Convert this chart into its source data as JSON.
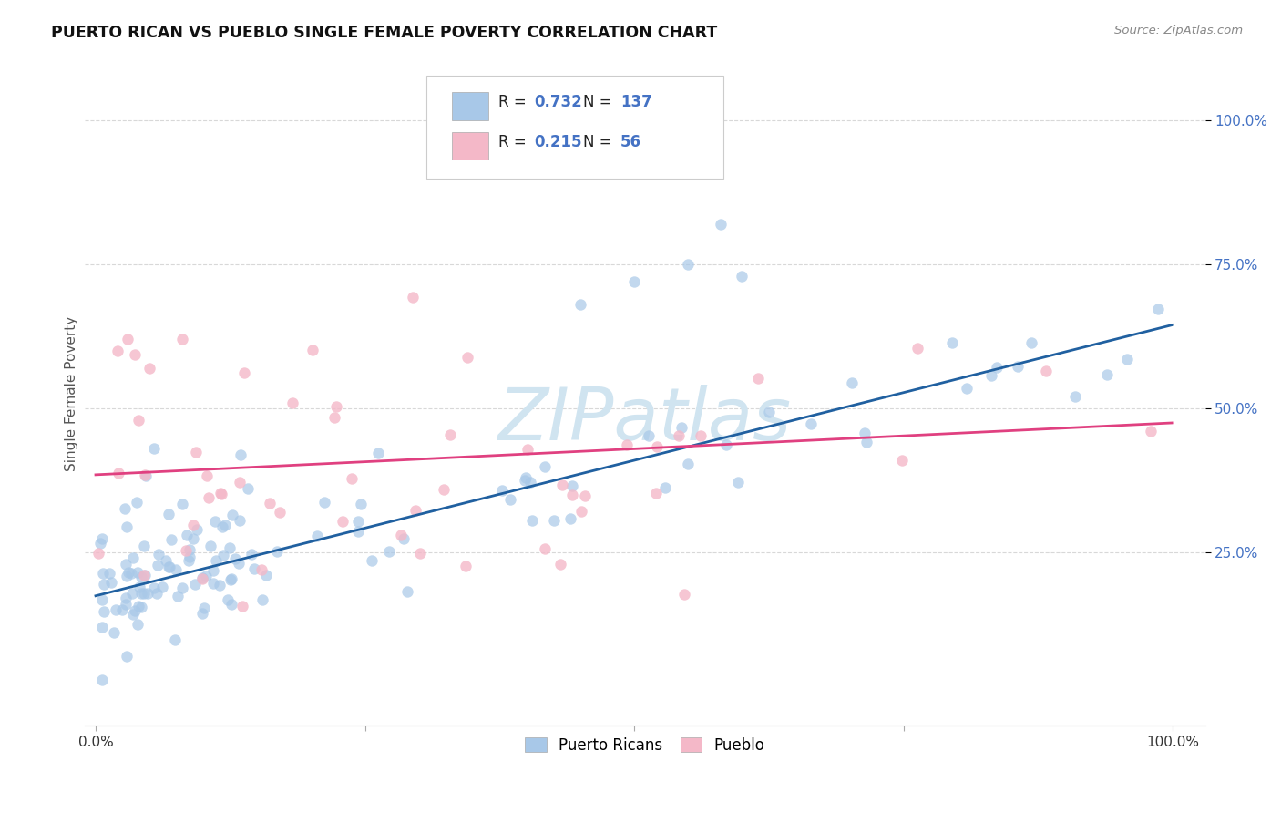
{
  "title": "PUERTO RICAN VS PUEBLO SINGLE FEMALE POVERTY CORRELATION CHART",
  "source": "Source: ZipAtlas.com",
  "ylabel": "Single Female Poverty",
  "legend_blue_R": "0.732",
  "legend_blue_N": "137",
  "legend_pink_R": "0.215",
  "legend_pink_N": "56",
  "legend_blue_label": "Puerto Ricans",
  "legend_pink_label": "Pueblo",
  "blue_scatter_color": "#a8c8e8",
  "pink_scatter_color": "#f4b8c8",
  "blue_line_color": "#2060a0",
  "pink_line_color": "#e04080",
  "ytick_color": "#4472c4",
  "watermark": "ZIPatlas",
  "watermark_color": "#d0e4f0",
  "blue_line_intercept": 0.175,
  "blue_line_slope": 0.47,
  "pink_line_intercept": 0.385,
  "pink_line_slope": 0.09
}
